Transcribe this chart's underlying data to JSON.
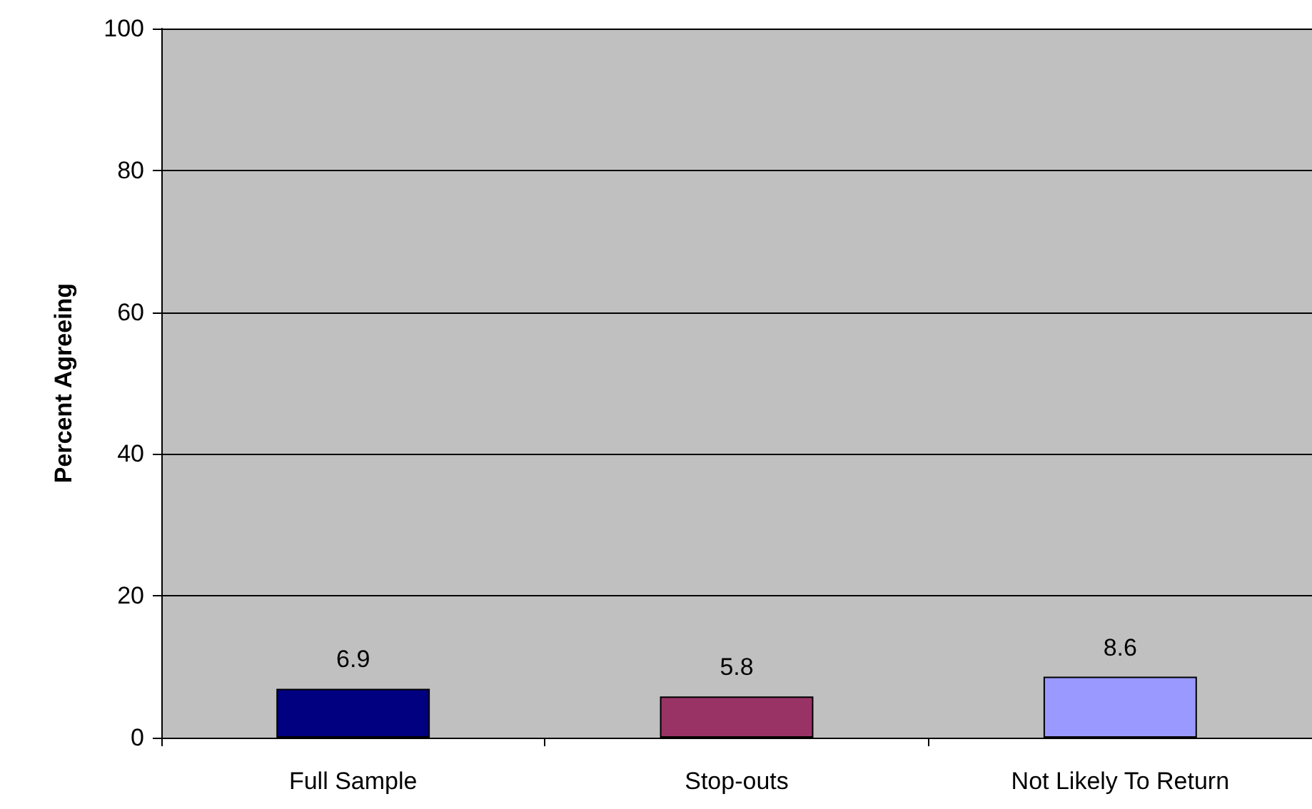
{
  "chart_data": {
    "type": "bar",
    "ylabel": "Percent Agreeing",
    "categories": [
      "Full Sample",
      "Stop-outs",
      "Not Likely To Return"
    ],
    "values": [
      6.9,
      5.8,
      8.6
    ],
    "colors": [
      "#000080",
      "#993366",
      "#9999ff"
    ],
    "ylim": [
      0,
      100
    ],
    "yticks": [
      0,
      20,
      40,
      60,
      80,
      100
    ],
    "grid": "y",
    "data_labels": true
  }
}
